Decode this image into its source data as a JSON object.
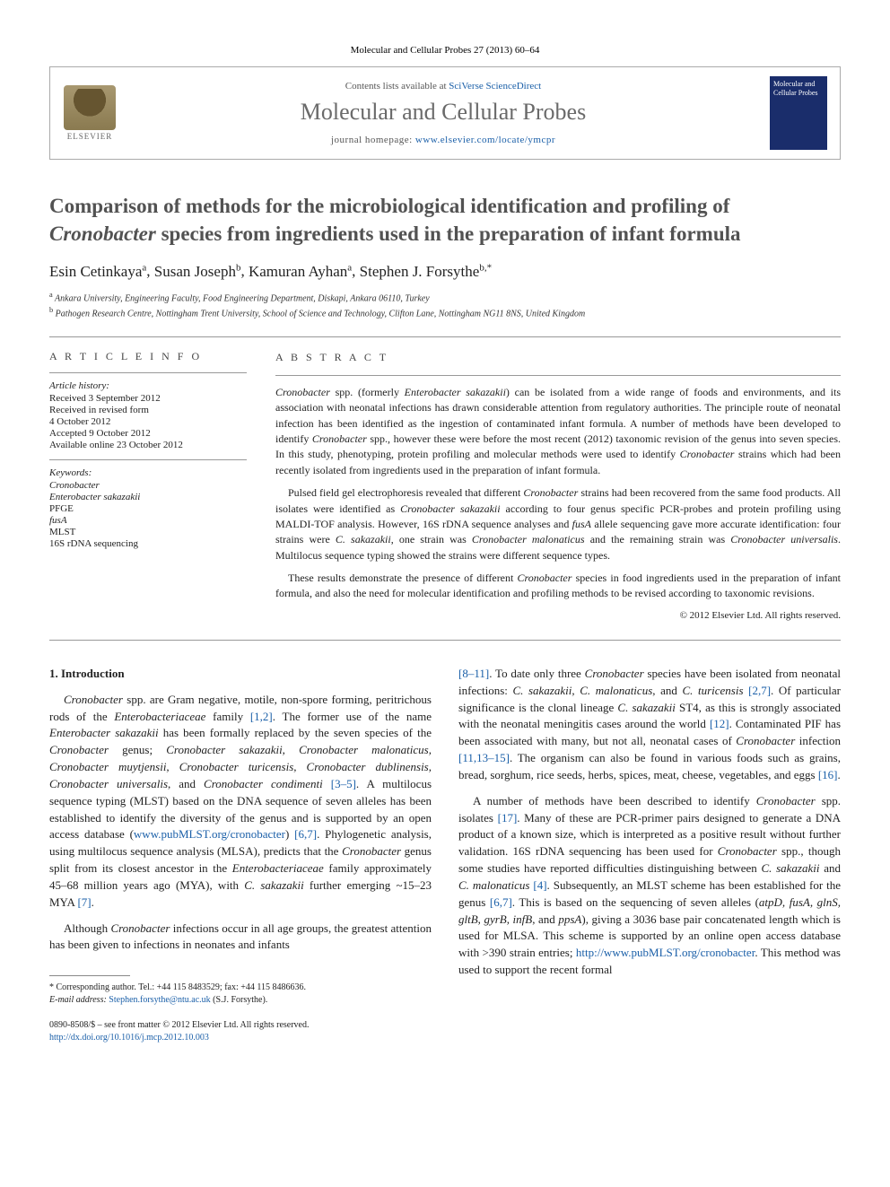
{
  "citation": "Molecular and Cellular Probes 27 (2013) 60–64",
  "header": {
    "contents_prefix": "Contents lists available at ",
    "contents_link": "SciVerse ScienceDirect",
    "journal_name": "Molecular and Cellular Probes",
    "homepage_prefix": "journal homepage: ",
    "homepage_url": "www.elsevier.com/locate/ymcpr",
    "publisher": "ELSEVIER",
    "cover_text": "Molecular and Cellular Probes"
  },
  "title_part1": "Comparison of methods for the microbiological identification and profiling of ",
  "title_italic": "Cronobacter",
  "title_part2": " species from ingredients used in the preparation of infant formula",
  "authors": [
    {
      "name": "Esin Cetinkaya",
      "sup": "a"
    },
    {
      "name": "Susan Joseph",
      "sup": "b"
    },
    {
      "name": "Kamuran Ayhan",
      "sup": "a"
    },
    {
      "name": "Stephen J. Forsythe",
      "sup": "b,*"
    }
  ],
  "affiliations": [
    {
      "sup": "a",
      "text": "Ankara University, Engineering Faculty, Food Engineering Department, Diskapi, Ankara 06110, Turkey"
    },
    {
      "sup": "b",
      "text": "Pathogen Research Centre, Nottingham Trent University, School of Science and Technology, Clifton Lane, Nottingham NG11 8NS, United Kingdom"
    }
  ],
  "article_info_label": "A R T I C L E  I N F O",
  "abstract_label": "A B S T R A C T",
  "history": {
    "label": "Article history:",
    "items": [
      "Received 3 September 2012",
      "Received in revised form",
      "4 October 2012",
      "Accepted 9 October 2012",
      "Available online 23 October 2012"
    ]
  },
  "keywords": {
    "label": "Keywords:",
    "items": [
      {
        "text": "Cronobacter",
        "italic": true
      },
      {
        "text": "Enterobacter sakazakii",
        "italic": true
      },
      {
        "text": "PFGE",
        "italic": false
      },
      {
        "text": "fusA",
        "italic": true
      },
      {
        "text": "MLST",
        "italic": false
      },
      {
        "text": "16S rDNA sequencing",
        "italic": false
      }
    ]
  },
  "abstract": {
    "p1_html": "<span class=\"italic\">Cronobacter</span> spp. (formerly <span class=\"italic\">Enterobacter sakazakii</span>) can be isolated from a wide range of foods and environments, and its association with neonatal infections has drawn considerable attention from regulatory authorities. The principle route of neonatal infection has been identified as the ingestion of contaminated infant formula. A number of methods have been developed to identify <span class=\"italic\">Cronobacter</span> spp., however these were before the most recent (2012) taxonomic revision of the genus into seven species. In this study, phenotyping, protein profiling and molecular methods were used to identify <span class=\"italic\">Cronobacter</span> strains which had been recently isolated from ingredients used in the preparation of infant formula.",
    "p2_html": "Pulsed field gel electrophoresis revealed that different <span class=\"italic\">Cronobacter</span> strains had been recovered from the same food products. All isolates were identified as <span class=\"italic\">Cronobacter sakazakii</span> according to four genus specific PCR-probes and protein profiling using MALDI-TOF analysis. However, 16S rDNA sequence analyses and <span class=\"italic\">fusA</span> allele sequencing gave more accurate identification: four strains were <span class=\"italic\">C. sakazakii</span>, one strain was <span class=\"italic\">Cronobacter malonaticus</span> and the remaining strain was <span class=\"italic\">Cronobacter universalis</span>. Multilocus sequence typing showed the strains were different sequence types.",
    "p3_html": "These results demonstrate the presence of different <span class=\"italic\">Cronobacter</span> species in food ingredients used in the preparation of infant formula, and also the need for molecular identification and profiling methods to be revised according to taxonomic revisions."
  },
  "copyright": "© 2012 Elsevier Ltd. All rights reserved.",
  "section1": {
    "heading": "1. Introduction",
    "col1_p1_html": "<span class=\"italic\">Cronobacter</span> spp. are Gram negative, motile, non-spore forming, peritrichous rods of the <span class=\"italic\">Enterobacteriaceae</span> family <a class=\"ref\">[1,2]</a>. The former use of the name <span class=\"italic\">Enterobacter sakazakii</span> has been formally replaced by the seven species of the <span class=\"italic\">Cronobacter</span> genus; <span class=\"italic\">Cronobacter sakazakii, Cronobacter malonaticus, Cronobacter muytjensii, Cronobacter turicensis, Cronobacter dublinensis, Cronobacter universalis</span>, and <span class=\"italic\">Cronobacter condimenti</span> <a class=\"ref\">[3–5]</a>. A multilocus sequence typing (MLST) based on the DNA sequence of seven alleles has been established to identify the diversity of the genus and is supported by an open access database (<a class=\"ref\">www.pubMLST.org/cronobacter</a>) <a class=\"ref\">[6,7]</a>. Phylogenetic analysis, using multilocus sequence analysis (MLSA), predicts that the <span class=\"italic\">Cronobacter</span> genus split from its closest ancestor in the <span class=\"italic\">Enterobacteriaceae</span> family approximately 45–68 million years ago (MYA), with <span class=\"italic\">C. sakazakii</span> further emerging ~15–23 MYA <a class=\"ref\">[7]</a>.",
    "col1_p2_html": "Although <span class=\"italic\">Cronobacter</span> infections occur in all age groups, the greatest attention has been given to infections in neonates and infants",
    "col2_p1_html": "<a class=\"ref\">[8–11]</a>. To date only three <span class=\"italic\">Cronobacter</span> species have been isolated from neonatal infections: <span class=\"italic\">C. sakazakii, C. malonaticus</span>, and <span class=\"italic\">C. turicensis</span> <a class=\"ref\">[2,7]</a>. Of particular significance is the clonal lineage <span class=\"italic\">C. sakazakii</span> ST4, as this is strongly associated with the neonatal meningitis cases around the world <a class=\"ref\">[12]</a>. Contaminated PIF has been associated with many, but not all, neonatal cases of <span class=\"italic\">Cronobacter</span> infection <a class=\"ref\">[11,13–15]</a>. The organism can also be found in various foods such as grains, bread, sorghum, rice seeds, herbs, spices, meat, cheese, vegetables, and eggs <a class=\"ref\">[16]</a>.",
    "col2_p2_html": "A number of methods have been described to identify <span class=\"italic\">Cronobacter</span> spp. isolates <a class=\"ref\">[17]</a>. Many of these are PCR-primer pairs designed to generate a DNA product of a known size, which is interpreted as a positive result without further validation. 16S rDNA sequencing has been used for <span class=\"italic\">Cronobacter</span> spp., though some studies have reported difficulties distinguishing between <span class=\"italic\">C. sakazakii</span> and <span class=\"italic\">C. malonaticus</span> <a class=\"ref\">[4]</a>. Subsequently, an MLST scheme has been established for the genus <a class=\"ref\">[6,7]</a>. This is based on the sequencing of seven alleles (<span class=\"italic\">atpD, fusA, glnS, gltB, gyrB, infB</span>, and <span class=\"italic\">ppsA</span>), giving a 3036 base pair concatenated length which is used for MLSA. This scheme is supported by an online open access database with &gt;390 strain entries; <a class=\"ref\">http://www.pubMLST.org/cronobacter</a>. This method was used to support the recent formal"
  },
  "corresponding": {
    "label": "* Corresponding author. Tel.: +44 115 8483529; fax: +44 115 8486636.",
    "email_label": "E-mail address: ",
    "email": "Stephen.forsythe@ntu.ac.uk",
    "email_suffix": " (S.J. Forsythe)."
  },
  "footer": {
    "line1": "0890-8508/$ – see front matter © 2012 Elsevier Ltd. All rights reserved.",
    "doi_url": "http://dx.doi.org/10.1016/j.mcp.2012.10.003"
  },
  "colors": {
    "link": "#1a5fa8",
    "title_gray": "#525252",
    "journal_gray": "#6a6a6a",
    "cover_bg": "#1a2d6b",
    "border": "#aaaaaa"
  }
}
